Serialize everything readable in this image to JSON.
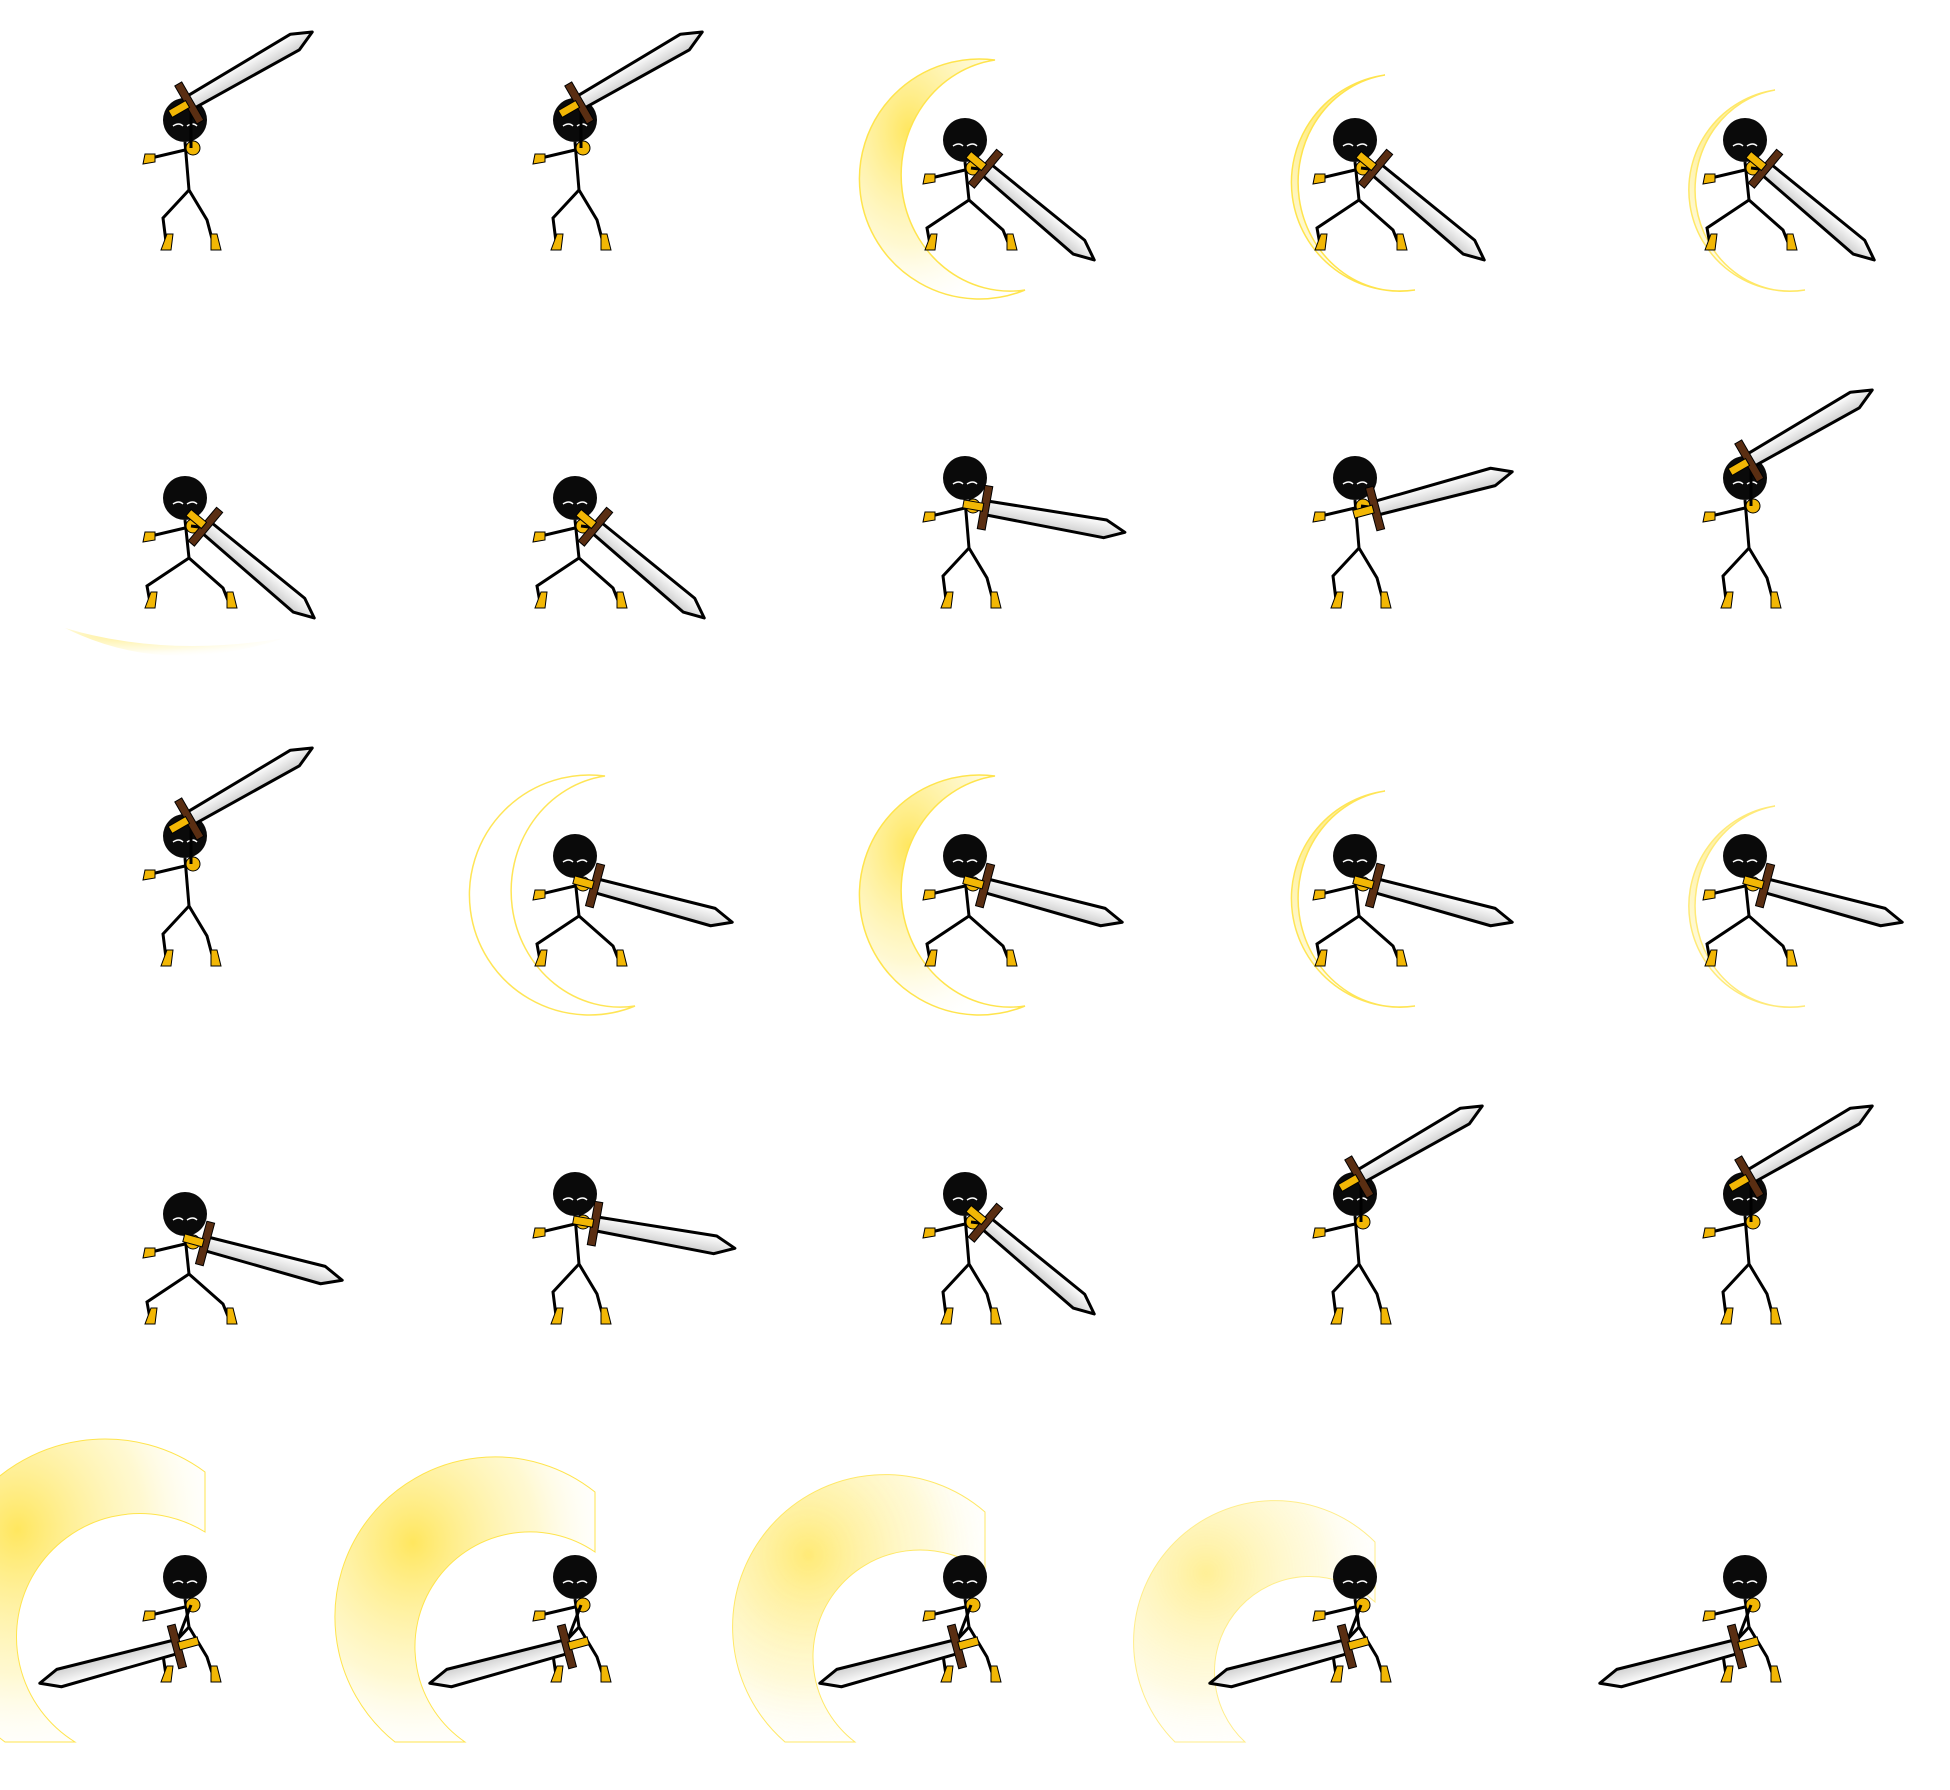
{
  "sprite_sheet": {
    "rows": 5,
    "columns": 5,
    "frame_count": 25,
    "colors": {
      "background": "#ffffff",
      "body": "#000000",
      "head": "#0a0a0a",
      "accent": "#f2b705",
      "blade": "#ececec",
      "hilt": "#5a2e12",
      "trail": "#ffe44d"
    },
    "frames": [
      {
        "pose": "raise",
        "sword": "up-right",
        "trail": "none",
        "trail_level": 0
      },
      {
        "pose": "raise",
        "sword": "up-right",
        "trail": "none",
        "trail_level": 0
      },
      {
        "pose": "lunge",
        "sword": "down-right",
        "trail": "crescent-large",
        "trail_level": 0.9
      },
      {
        "pose": "lunge",
        "sword": "down-right",
        "trail": "crescent-mid",
        "trail_level": 0.7
      },
      {
        "pose": "lunge",
        "sword": "down-right",
        "trail": "crescent-low",
        "trail_level": 0.5
      },
      {
        "pose": "lunge",
        "sword": "down-right",
        "trail": "wisp",
        "trail_level": 0.3
      },
      {
        "pose": "lunge",
        "sword": "down-right",
        "trail": "none",
        "trail_level": 0
      },
      {
        "pose": "stand",
        "sword": "right",
        "trail": "none",
        "trail_level": 0
      },
      {
        "pose": "stand",
        "sword": "right-up",
        "trail": "none",
        "trail_level": 0
      },
      {
        "pose": "raise",
        "sword": "up-right",
        "trail": "none",
        "trail_level": 0
      },
      {
        "pose": "raise",
        "sword": "up-right",
        "trail": "none",
        "trail_level": 0
      },
      {
        "pose": "crouch",
        "sword": "low-right",
        "trail": "crescent-outline",
        "trail_level": 0.6
      },
      {
        "pose": "crouch",
        "sword": "low-right",
        "trail": "crescent-large",
        "trail_level": 0.8
      },
      {
        "pose": "crouch",
        "sword": "low-right",
        "trail": "crescent-mid",
        "trail_level": 0.6
      },
      {
        "pose": "crouch",
        "sword": "low-right",
        "trail": "crescent-low",
        "trail_level": 0.4
      },
      {
        "pose": "crouch",
        "sword": "low-right",
        "trail": "none",
        "trail_level": 0
      },
      {
        "pose": "stand",
        "sword": "right",
        "trail": "none",
        "trail_level": 0
      },
      {
        "pose": "stand",
        "sword": "down-right",
        "trail": "none",
        "trail_level": 0
      },
      {
        "pose": "stand",
        "sword": "up-right",
        "trail": "none",
        "trail_level": 0
      },
      {
        "pose": "stand",
        "sword": "up-right",
        "trail": "none",
        "trail_level": 0
      },
      {
        "pose": "bend",
        "sword": "low-left",
        "trail": "arc-large",
        "trail_level": 0.9
      },
      {
        "pose": "bend",
        "sword": "low-left",
        "trail": "arc-mid",
        "trail_level": 0.7
      },
      {
        "pose": "bend",
        "sword": "low-left",
        "trail": "arc-low",
        "trail_level": 0.5
      },
      {
        "pose": "bend",
        "sword": "low-left",
        "trail": "arc-faint",
        "trail_level": 0.3
      },
      {
        "pose": "bend",
        "sword": "low-left",
        "trail": "none",
        "trail_level": 0
      }
    ]
  }
}
